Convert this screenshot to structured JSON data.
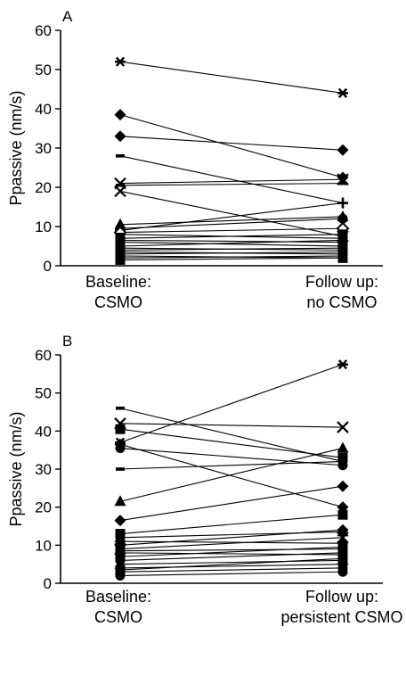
{
  "chart_data": [
    {
      "type": "line",
      "panel": "A",
      "ylabel": "Ppassive (nm/s)",
      "ylim": [
        0,
        60
      ],
      "yticks": [
        0,
        10,
        20,
        30,
        40,
        50,
        60
      ],
      "categories": [
        [
          "Baseline:",
          "CSMO"
        ],
        [
          "Follow up:",
          "no CSMO"
        ]
      ],
      "series": [
        {
          "values": [
            52,
            44
          ],
          "marker": [
            "asterisk",
            "asterisk"
          ]
        },
        {
          "values": [
            38.5,
            22.5
          ],
          "marker": [
            "diamond",
            "diamond"
          ]
        },
        {
          "values": [
            33,
            29.5
          ],
          "marker": [
            "diamond",
            "diamond"
          ]
        },
        {
          "values": [
            28,
            16
          ],
          "marker": [
            "dash",
            "plus"
          ]
        },
        {
          "values": [
            21,
            22
          ],
          "marker": [
            "cross",
            "cross"
          ]
        },
        {
          "values": [
            20.5,
            21
          ],
          "marker": [
            "dash",
            "dash"
          ]
        },
        {
          "values": [
            19,
            7.5
          ],
          "marker": [
            "cross",
            "cross"
          ]
        },
        {
          "values": [
            10.5,
            12.5
          ],
          "marker": [
            "triangle",
            "triangle"
          ]
        },
        {
          "values": [
            9.5,
            12
          ],
          "marker": [
            "circle",
            "circle"
          ]
        },
        {
          "values": [
            9,
            16
          ],
          "marker": [
            "plus",
            "plus"
          ]
        },
        {
          "values": [
            8.5,
            9.5
          ],
          "marker": [
            "open-diamond",
            "open-diamond"
          ]
        },
        {
          "values": [
            8,
            7
          ],
          "marker": [
            "dash",
            "dash"
          ]
        },
        {
          "values": [
            7,
            8
          ],
          "marker": [
            "square",
            "square"
          ]
        },
        {
          "values": [
            6.5,
            6
          ],
          "marker": [
            "circle",
            "circle"
          ]
        },
        {
          "values": [
            6,
            5
          ],
          "marker": [
            "square",
            "square"
          ]
        },
        {
          "values": [
            5,
            6.5
          ],
          "marker": [
            "circle",
            "circle"
          ]
        },
        {
          "values": [
            4.5,
            4
          ],
          "marker": [
            "square",
            "square"
          ]
        },
        {
          "values": [
            4,
            4.5
          ],
          "marker": [
            "circle",
            "circle"
          ]
        },
        {
          "values": [
            3.5,
            3
          ],
          "marker": [
            "square",
            "square"
          ]
        },
        {
          "values": [
            3,
            3.5
          ],
          "marker": [
            "circle",
            "circle"
          ]
        },
        {
          "values": [
            2.5,
            2
          ],
          "marker": [
            "square",
            "square"
          ]
        },
        {
          "values": [
            2,
            2.5
          ],
          "marker": [
            "circle",
            "circle"
          ]
        },
        {
          "values": [
            1.5,
            2
          ],
          "marker": [
            "square",
            "square"
          ]
        }
      ]
    },
    {
      "type": "line",
      "panel": "B",
      "ylabel": "Ppassive (nm/s)",
      "ylim": [
        0,
        60
      ],
      "yticks": [
        0,
        10,
        20,
        30,
        40,
        50,
        60
      ],
      "categories": [
        [
          "Baseline:",
          "CSMO"
        ],
        [
          "Follow up:",
          "persistent CSMO"
        ]
      ],
      "series": [
        {
          "values": [
            46,
            32
          ],
          "marker": [
            "dash",
            "dash"
          ]
        },
        {
          "values": [
            42,
            41
          ],
          "marker": [
            "cross",
            "cross"
          ]
        },
        {
          "values": [
            40.5,
            33
          ],
          "marker": [
            "square",
            "square"
          ]
        },
        {
          "values": [
            37,
            57.5
          ],
          "marker": [
            "asterisk",
            "asterisk"
          ]
        },
        {
          "values": [
            36.5,
            20
          ],
          "marker": [
            "diamond",
            "diamond"
          ]
        },
        {
          "values": [
            35.5,
            31
          ],
          "marker": [
            "circle",
            "circle"
          ]
        },
        {
          "values": [
            30,
            32
          ],
          "marker": [
            "dash",
            "dash"
          ]
        },
        {
          "values": [
            21.5,
            35.5
          ],
          "marker": [
            "triangle",
            "triangle"
          ]
        },
        {
          "values": [
            16.5,
            25.5
          ],
          "marker": [
            "diamond",
            "diamond"
          ]
        },
        {
          "values": [
            13,
            18
          ],
          "marker": [
            "square",
            "square"
          ]
        },
        {
          "values": [
            12,
            13.5
          ],
          "marker": [
            "triangle",
            "triangle"
          ]
        },
        {
          "values": [
            11,
            10.5
          ],
          "marker": [
            "circle",
            "circle"
          ]
        },
        {
          "values": [
            10,
            14
          ],
          "marker": [
            "diamond",
            "diamond"
          ]
        },
        {
          "values": [
            9,
            12
          ],
          "marker": [
            "cross",
            "cross"
          ]
        },
        {
          "values": [
            8.5,
            9
          ],
          "marker": [
            "square",
            "square"
          ]
        },
        {
          "values": [
            8,
            7.5
          ],
          "marker": [
            "circle",
            "circle"
          ]
        },
        {
          "values": [
            7,
            9.5
          ],
          "marker": [
            "square",
            "square"
          ]
        },
        {
          "values": [
            6,
            8
          ],
          "marker": [
            "circle",
            "circle"
          ]
        },
        {
          "values": [
            5,
            6
          ],
          "marker": [
            "triangle",
            "triangle"
          ]
        },
        {
          "values": [
            4,
            5
          ],
          "marker": [
            "circle",
            "circle"
          ]
        },
        {
          "values": [
            3.5,
            6.5
          ],
          "marker": [
            "square",
            "square"
          ]
        },
        {
          "values": [
            3,
            4
          ],
          "marker": [
            "circle",
            "circle"
          ]
        },
        {
          "values": [
            2,
            3
          ],
          "marker": [
            "circle",
            "circle"
          ]
        }
      ]
    }
  ]
}
